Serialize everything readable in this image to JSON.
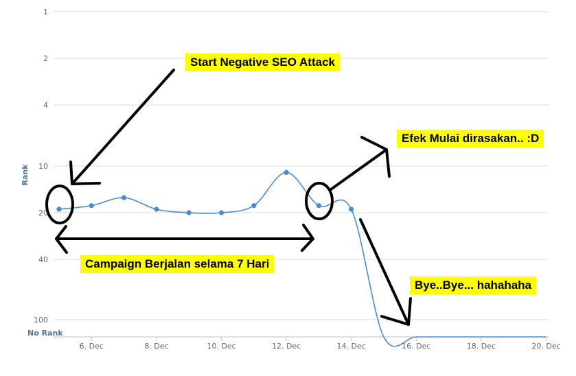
{
  "chart_data": {
    "type": "line",
    "title": "",
    "ylabel": "Rank",
    "xlabel": "",
    "y_scale": "rank (inverted, compressed)",
    "y_ticks": [
      "1",
      "2",
      "4",
      "10",
      "20",
      "40",
      "100"
    ],
    "y_bottom_label": "No Rank",
    "x_ticks": [
      "6. Dec",
      "8. Dec",
      "10. Dec",
      "12. Dec",
      "14. Dec",
      "16. Dec",
      "18. Dec",
      "20. Dec"
    ],
    "x_range": [
      "5. Dec",
      "20. Dec"
    ],
    "grid": true,
    "legend": "none",
    "line_color": "#4a8bc9",
    "series": [
      {
        "points": [
          {
            "x": "5. Dec",
            "rank": 19,
            "marker": true
          },
          {
            "x": "6. Dec",
            "rank": 18,
            "marker": true
          },
          {
            "x": "7. Dec",
            "rank": 16,
            "marker": true
          },
          {
            "x": "8. Dec",
            "rank": 19,
            "marker": true
          },
          {
            "x": "9. Dec",
            "rank": 20,
            "marker": true
          },
          {
            "x": "10. Dec",
            "rank": 20,
            "marker": true
          },
          {
            "x": "11. Dec",
            "rank": 18,
            "marker": true
          },
          {
            "x": "12. Dec",
            "rank": 11,
            "marker": true
          },
          {
            "x": "13. Dec",
            "rank": 18,
            "marker": true
          },
          {
            "x": "14. Dec",
            "rank": 19,
            "marker": true
          },
          {
            "x": "15. Dec",
            "rank": "No Rank",
            "marker": false
          },
          {
            "x": "16. Dec",
            "rank": "No Rank",
            "marker": false
          },
          {
            "x": "17. Dec",
            "rank": "No Rank",
            "marker": false
          },
          {
            "x": "18. Dec",
            "rank": "No Rank",
            "marker": false
          },
          {
            "x": "19. Dec",
            "rank": "No Rank",
            "marker": false
          },
          {
            "x": "20. Dec",
            "rank": "No Rank",
            "marker": false
          }
        ]
      }
    ]
  },
  "annotations": {
    "start_attack": "Start Negative SEO Attack",
    "effect": "Efek Mulai dirasakan.. :D",
    "campaign": "Campaign Berjalan selama 7 Hari",
    "bye": "Bye..Bye... hahahaha"
  }
}
